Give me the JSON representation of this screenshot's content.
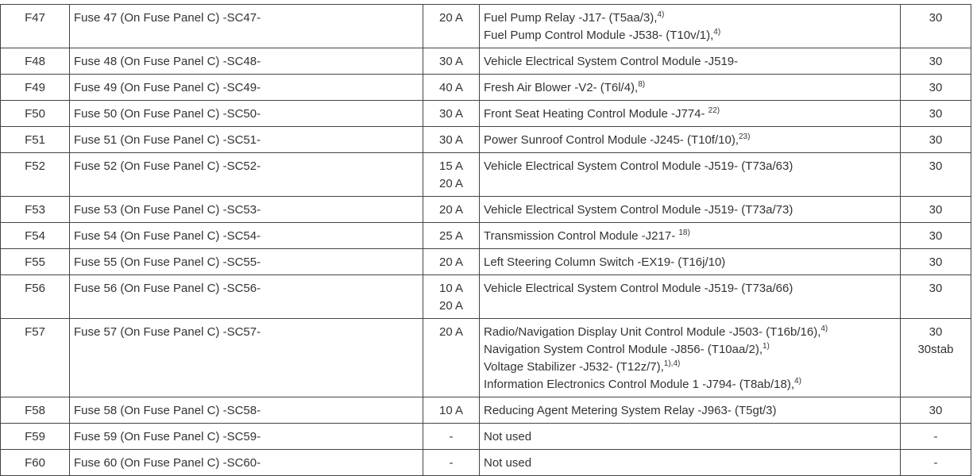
{
  "rows": [
    {
      "fuse": "F47",
      "desc": "Fuse 47 (On Fuse Panel C) -SC47-",
      "amps": [
        "20 A"
      ],
      "components": [
        {
          "text": "Fuel Pump Relay -J17- (T5aa/3),",
          "sup": "4)"
        },
        {
          "text": "Fuel Pump Control Module -J538- (T10v/1),",
          "sup": "4)"
        }
      ],
      "terminal": [
        "30"
      ]
    },
    {
      "fuse": "F48",
      "desc": "Fuse 48 (On Fuse Panel C) -SC48-",
      "amps": [
        "30 A"
      ],
      "components": [
        {
          "text": "Vehicle Electrical System Control Module -J519-",
          "sup": ""
        }
      ],
      "terminal": [
        "30"
      ]
    },
    {
      "fuse": "F49",
      "desc": "Fuse 49 (On Fuse Panel C) -SC49-",
      "amps": [
        "40 A"
      ],
      "components": [
        {
          "text": "Fresh Air Blower -V2- (T6l/4),",
          "sup": "8)"
        }
      ],
      "terminal": [
        "30"
      ]
    },
    {
      "fuse": "F50",
      "desc": "Fuse 50 (On Fuse Panel C) -SC50-",
      "amps": [
        "30 A"
      ],
      "components": [
        {
          "text": "Front Seat Heating Control Module -J774- ",
          "sup": "22)"
        }
      ],
      "terminal": [
        "30"
      ]
    },
    {
      "fuse": "F51",
      "desc": "Fuse 51 (On Fuse Panel C) -SC51-",
      "amps": [
        "30 A"
      ],
      "components": [
        {
          "text": "Power Sunroof Control Module -J245- (T10f/10),",
          "sup": "23)"
        }
      ],
      "terminal": [
        "30"
      ]
    },
    {
      "fuse": "F52",
      "desc": "Fuse 52 (On Fuse Panel C) -SC52-",
      "amps": [
        "15 A",
        "20 A"
      ],
      "components": [
        {
          "text": "Vehicle Electrical System Control Module -J519- (T73a/63)",
          "sup": ""
        }
      ],
      "terminal": [
        "30"
      ]
    },
    {
      "fuse": "F53",
      "desc": "Fuse 53 (On Fuse Panel C) -SC53-",
      "amps": [
        "20 A"
      ],
      "components": [
        {
          "text": "Vehicle Electrical System Control Module -J519- (T73a/73)",
          "sup": ""
        }
      ],
      "terminal": [
        "30"
      ]
    },
    {
      "fuse": "F54",
      "desc": "Fuse 54 (On Fuse Panel C) -SC54-",
      "amps": [
        "25 A"
      ],
      "components": [
        {
          "text": "Transmission Control Module -J217- ",
          "sup": "18)"
        }
      ],
      "terminal": [
        "30"
      ]
    },
    {
      "fuse": "F55",
      "desc": "Fuse 55 (On Fuse Panel C) -SC55-",
      "amps": [
        "20 A"
      ],
      "components": [
        {
          "text": "Left Steering Column Switch -EX19- (T16j/10)",
          "sup": ""
        }
      ],
      "terminal": [
        "30"
      ]
    },
    {
      "fuse": "F56",
      "desc": "Fuse 56 (On Fuse Panel C) -SC56-",
      "amps": [
        "10 A",
        "20 A"
      ],
      "components": [
        {
          "text": "Vehicle Electrical System Control Module -J519- (T73a/66)",
          "sup": ""
        }
      ],
      "terminal": [
        "30"
      ]
    },
    {
      "fuse": "F57",
      "desc": "Fuse 57 (On Fuse Panel C) -SC57-",
      "amps": [
        "20 A"
      ],
      "components": [
        {
          "text": "Radio/Navigation Display Unit Control Module -J503- (T16b/16),",
          "sup": "4)"
        },
        {
          "text": "Navigation System Control Module -J856- (T10aa/2),",
          "sup": "1)"
        },
        {
          "text": "Voltage Stabilizer -J532- (T12z/7),",
          "sup": "1),4)"
        },
        {
          "text": "Information Electronics Control Module 1 -J794- (T8ab/18),",
          "sup": "4)"
        }
      ],
      "terminal": [
        "30",
        "30stab"
      ]
    },
    {
      "fuse": "F58",
      "desc": "Fuse 58 (On Fuse Panel C) -SC58-",
      "amps": [
        "10 A"
      ],
      "components": [
        {
          "text": "Reducing Agent Metering System Relay -J963- (T5gt/3)",
          "sup": ""
        }
      ],
      "terminal": [
        "30"
      ]
    },
    {
      "fuse": "F59",
      "desc": "Fuse 59 (On Fuse Panel C) -SC59-",
      "amps": [
        "-"
      ],
      "components": [
        {
          "text": "Not used",
          "sup": ""
        }
      ],
      "terminal": [
        "-"
      ]
    },
    {
      "fuse": "F60",
      "desc": "Fuse 60 (On Fuse Panel C) -SC60-",
      "amps": [
        "-"
      ],
      "components": [
        {
          "text": "Not used",
          "sup": ""
        }
      ],
      "terminal": [
        "-"
      ]
    }
  ]
}
